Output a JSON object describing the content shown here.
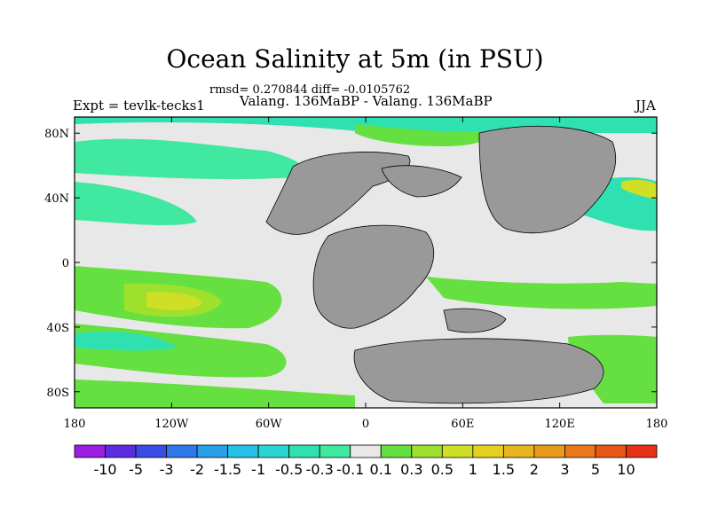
{
  "title": "Ocean Salinity at 5m (in PSU)",
  "stats": "rmsd= 0.270844 diff= -0.0105762",
  "experiment": "Expt = tevlk-tecks1",
  "difference": "Valang. 136MaBP - Valang. 136MaBP",
  "season": "JJA",
  "map": {
    "y_ticks": [
      {
        "label": "80N",
        "lat": 80
      },
      {
        "label": "40N",
        "lat": 40
      },
      {
        "label": "0",
        "lat": 0
      },
      {
        "label": "40S",
        "lat": -40
      },
      {
        "label": "80S",
        "lat": -80
      }
    ],
    "x_ticks": [
      {
        "label": "180",
        "lon": -180
      },
      {
        "label": "120W",
        "lon": -120
      },
      {
        "label": "60W",
        "lon": -60
      },
      {
        "label": "0",
        "lon": 0
      },
      {
        "label": "60E",
        "lon": 60
      },
      {
        "label": "120E",
        "lon": 120
      },
      {
        "label": "180",
        "lon": 180
      }
    ],
    "land_color": "#999999",
    "ocean_fill_color": "#e8e8e8"
  },
  "colorbar": {
    "labels": [
      "-10",
      "-5",
      "-3",
      "-2",
      "-1.5",
      "-1",
      "-0.5",
      "-0.3",
      "-0.1",
      "0.1",
      "0.3",
      "0.5",
      "1",
      "1.5",
      "2",
      "3",
      "5",
      "10"
    ],
    "colors": [
      "#9a1fe0",
      "#5b2ce0",
      "#3a4ce6",
      "#2d77e8",
      "#2a9ee6",
      "#24c0e6",
      "#2ad4d0",
      "#2fe0b0",
      "#40e8a0",
      "#e8e8e8",
      "#66e040",
      "#9ee02e",
      "#cfdf26",
      "#e6d020",
      "#e8b51e",
      "#e89a1c",
      "#e8781a",
      "#e85518",
      "#e83016"
    ]
  }
}
